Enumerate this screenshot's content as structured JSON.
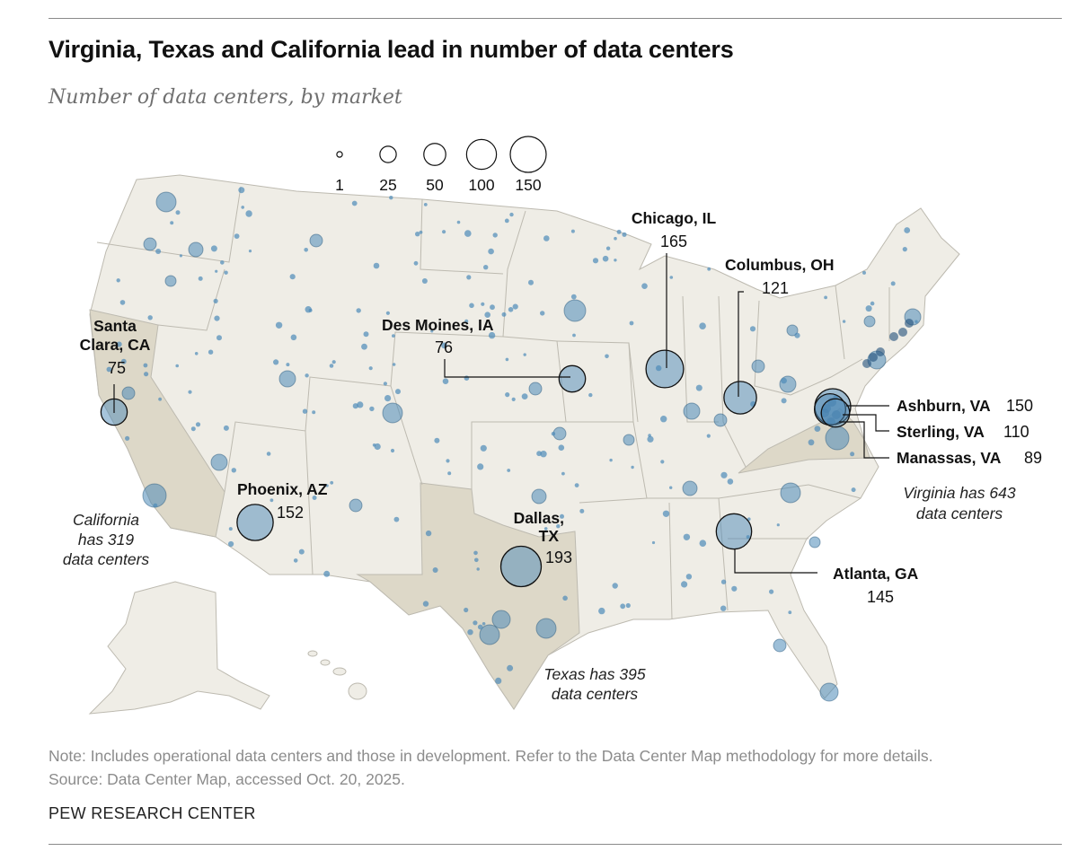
{
  "title": "Virginia, Texas and California lead in number of data centers",
  "subtitle": "Number of data centers, by market",
  "legend": {
    "values": [
      1,
      25,
      50,
      100,
      150
    ],
    "labels": [
      "1",
      "25",
      "50",
      "100",
      "150"
    ]
  },
  "colors": {
    "bubble": "#4d8ab8",
    "bubble_outline": "#2c5b80",
    "land": "#efede6",
    "highlight_state": "#ddd8c8",
    "border": "#bdbab0"
  },
  "highlighted_states": [
    "California",
    "Texas",
    "Virginia"
  ],
  "markets": [
    {
      "name": "Santa Clara, CA",
      "name_lines": [
        "Santa",
        "Clara, CA"
      ],
      "count": 75,
      "label": "75"
    },
    {
      "name": "Phoenix, AZ",
      "count": 152,
      "label": "152"
    },
    {
      "name": "Des Moines, IA",
      "count": 76,
      "label": "76"
    },
    {
      "name": "Chicago, IL",
      "count": 165,
      "label": "165"
    },
    {
      "name": "Columbus, OH",
      "count": 121,
      "label": "121"
    },
    {
      "name": "Dallas, TX",
      "name_lines": [
        "Dallas,",
        "TX"
      ],
      "count": 193,
      "label": "193"
    },
    {
      "name": "Atlanta, GA",
      "count": 145,
      "label": "145"
    },
    {
      "name": "Ashburn, VA",
      "count": 150,
      "label": "150"
    },
    {
      "name": "Sterling, VA",
      "count": 110,
      "label": "110"
    },
    {
      "name": "Manassas, VA",
      "count": 89,
      "label": "89"
    }
  ],
  "annotations": {
    "california": [
      "California",
      "has 319",
      "data centers"
    ],
    "texas": [
      "Texas has 395",
      "data centers"
    ],
    "virginia": [
      "Virginia has 643",
      "data centers"
    ]
  },
  "note": "Note: Includes operational data centers and those in development. Refer to the Data Center Map methodology for more details.",
  "source": "Source: Data Center Map, accessed Oct. 20, 2025.",
  "brand": "PEW RESEARCH CENTER"
}
